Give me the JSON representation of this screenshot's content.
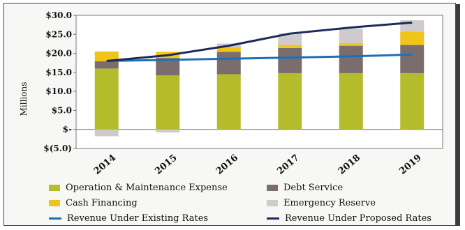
{
  "chart_data": {
    "type": "bar",
    "stacked": true,
    "categories": [
      "2014",
      "2015",
      "2016",
      "2017",
      "2018",
      "2019"
    ],
    "ylabel": "Millions",
    "ylim": [
      -5,
      30
    ],
    "yticks": [
      {
        "value": 30,
        "label": "$30.0"
      },
      {
        "value": 25,
        "label": "$25.0"
      },
      {
        "value": 20,
        "label": "$20.0"
      },
      {
        "value": 15,
        "label": "$15.0"
      },
      {
        "value": 10,
        "label": "$10.0"
      },
      {
        "value": 5,
        "label": "$5.0"
      },
      {
        "value": 0,
        "label": "$-"
      },
      {
        "value": -5,
        "label": "$(5.0)"
      }
    ],
    "bar_series": [
      {
        "name": "Operation & Maintenance Expense",
        "color": "#b5bc2c",
        "values": [
          16.0,
          14.2,
          14.5,
          14.8,
          14.8,
          14.8
        ]
      },
      {
        "name": "Debt Service",
        "color": "#7a6d6d",
        "values": [
          1.9,
          4.6,
          5.9,
          6.6,
          7.2,
          7.4
        ]
      },
      {
        "name": "Cash Financing",
        "color": "#f0c419",
        "values": [
          2.6,
          1.6,
          1.2,
          0.8,
          0.7,
          3.5
        ]
      },
      {
        "name": "Emergency Reserve",
        "color": "#cfcbcb",
        "values": [
          -1.8,
          -0.8,
          1.0,
          3.0,
          3.8,
          3.0
        ]
      }
    ],
    "line_series": [
      {
        "name": "Revenue Under Existing Rates",
        "color": "#1f6fb5",
        "values": [
          18.0,
          18.3,
          18.6,
          18.9,
          19.2,
          19.7
        ]
      },
      {
        "name": "Revenue Under Proposed Rates",
        "color": "#1c2a5a",
        "values": [
          18.0,
          19.5,
          22.0,
          25.2,
          26.8,
          28.1
        ]
      }
    ],
    "grid": false,
    "legend_position": "bottom"
  }
}
